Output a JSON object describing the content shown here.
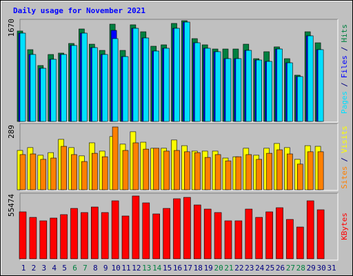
{
  "chart_data": [
    {
      "type": "bar",
      "title": "Daily usage for November 2021",
      "legend_separator": "/",
      "categories": [
        "1",
        "2",
        "3",
        "4",
        "5",
        "6",
        "7",
        "8",
        "9",
        "10",
        "11",
        "12",
        "13",
        "14",
        "15",
        "16",
        "17",
        "18",
        "19",
        "20",
        "21",
        "22",
        "23",
        "24",
        "25",
        "26",
        "27",
        "28",
        "29",
        "30",
        "31"
      ],
      "category_colors": [
        "#000080",
        "#000080",
        "#000080",
        "#000080",
        "#000080",
        "#008040",
        "#008040",
        "#000080",
        "#000080",
        "#000080",
        "#000080",
        "#000080",
        "#008040",
        "#008040",
        "#000080",
        "#000080",
        "#000080",
        "#000080",
        "#000080",
        "#008040",
        "#008040",
        "#000080",
        "#000080",
        "#000080",
        "#000080",
        "#000080",
        "#008040",
        "#008040",
        "#000080",
        "#000080",
        "#000080"
      ],
      "ylim": [
        0,
        1670
      ],
      "yticks": [
        1670
      ],
      "series": [
        {
          "name": "Hits",
          "color": "#008040",
          "values": [
            1499,
            1190,
            927,
            1110,
            1133,
            1293,
            1533,
            1281,
            1178,
            1613,
            1178,
            1602,
            1487,
            1247,
            1270,
            1625,
            1670,
            1373,
            1270,
            1201,
            1201,
            1201,
            1281,
            1041,
            1156,
            1236,
            1041,
            767,
            1487,
            1304,
            null
          ]
        },
        {
          "name": "Files",
          "color": "#0000ff",
          "values": [
            1464,
            1110,
            881,
            1030,
            1110,
            1259,
            1464,
            1224,
            1110,
            1510,
            1075,
            1544,
            1384,
            1167,
            1213,
            1544,
            1647,
            1304,
            1213,
            1156,
            1041,
            1041,
            1178,
            1018,
            995,
            1201,
            972,
            744,
            1419,
            1190,
            null
          ]
        },
        {
          "name": "Pages",
          "color": "#00e0ff",
          "values": [
            1464,
            1110,
            881,
            1030,
            1110,
            1259,
            1464,
            1224,
            1110,
            1373,
            1075,
            1544,
            1384,
            1167,
            1213,
            1544,
            1647,
            1304,
            1213,
            1156,
            1041,
            1041,
            1178,
            1018,
            995,
            1201,
            972,
            744,
            1419,
            1190,
            null
          ]
        }
      ]
    },
    {
      "type": "bar",
      "legend_separator": "/",
      "ylim": [
        0,
        289
      ],
      "yticks": [
        289
      ],
      "series": [
        {
          "name": "Visits",
          "color": "#ffff00",
          "values": [
            181,
            194,
            159,
            171,
            232,
            194,
            156,
            216,
            178,
            245,
            210,
            267,
            219,
            191,
            191,
            229,
            203,
            178,
            178,
            178,
            146,
            152,
            191,
            159,
            191,
            213,
            194,
            140,
            203,
            200,
            null
          ]
        },
        {
          "name": "Sites",
          "color": "#ff8000",
          "values": [
            162,
            165,
            140,
            146,
            200,
            162,
            130,
            168,
            152,
            289,
            181,
            216,
            187,
            191,
            178,
            181,
            175,
            171,
            149,
            162,
            133,
            152,
            162,
            140,
            168,
            184,
            165,
            118,
            175,
            175,
            null
          ]
        }
      ]
    },
    {
      "type": "bar",
      "ylim": [
        0,
        55474
      ],
      "yticks": [
        55474
      ],
      "series": [
        {
          "name": "KBytes",
          "color": "#ff0000",
          "values": [
            41452,
            36576,
            33528,
            35966,
            39014,
            44501,
            40843,
            45720,
            40843,
            51206,
            37795,
            55474,
            49378,
            39624,
            44501,
            53035,
            54254,
            47549,
            43891,
            40843,
            33528,
            33528,
            43891,
            36576,
            41452,
            45110,
            34747,
            28042,
            51206,
            43282,
            null
          ]
        }
      ]
    }
  ]
}
